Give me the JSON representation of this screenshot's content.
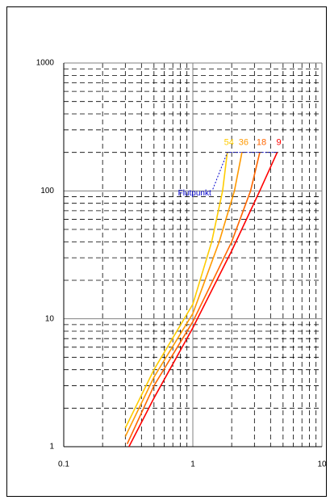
{
  "chart_data": {
    "type": "line",
    "log_x": true,
    "log_y": true,
    "grid": true,
    "minor_grid": true,
    "xlim": [
      0.1,
      10
    ],
    "ylim": [
      1,
      1000
    ],
    "xticks": [
      0.1,
      1,
      10
    ],
    "yticks": [
      1,
      10,
      100,
      1000
    ],
    "annotation": "Flutpunkt",
    "annotation_color": "#0000cc",
    "series": [
      {
        "name": "54",
        "color": "#ffcc00",
        "x": [
          0.3,
          0.5,
          1.0,
          1.4,
          1.7,
          1.85
        ],
        "values": [
          1.4,
          4,
          13,
          40,
          100,
          200
        ]
      },
      {
        "name": "36",
        "color": "#ff9900",
        "x": [
          0.3,
          0.5,
          1.0,
          1.6,
          2.1,
          2.4
        ],
        "values": [
          1.2,
          3.5,
          11,
          40,
          100,
          200
        ]
      },
      {
        "name": "18",
        "color": "#ff6600",
        "x": [
          0.31,
          0.5,
          1.0,
          2.0,
          2.8,
          3.3
        ],
        "values": [
          1.05,
          3,
          9.5,
          40,
          100,
          200
        ]
      },
      {
        "name": "9",
        "color": "#ff0000",
        "x": [
          0.32,
          0.5,
          1.0,
          2.0,
          3.3,
          4.5
        ],
        "values": [
          1,
          2.4,
          8.5,
          34,
          100,
          200
        ]
      }
    ]
  }
}
